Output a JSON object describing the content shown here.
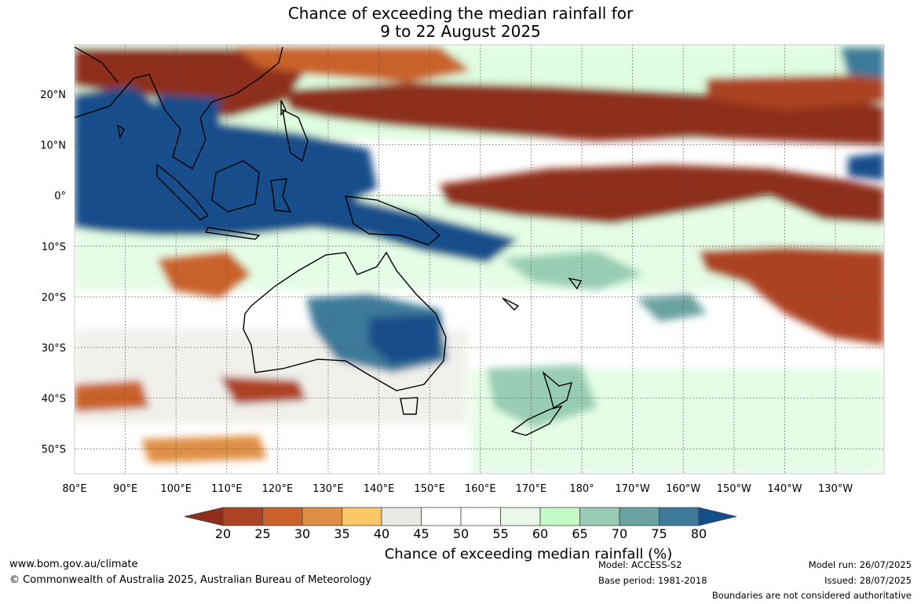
{
  "title_line1": "Chance of exceeding the median rainfall for",
  "title_line2": "9 to 22 August 2025",
  "lat_labels": [
    "20°N",
    "10°N",
    "0°",
    "10°S",
    "20°S",
    "30°S",
    "40°S",
    "50°S"
  ],
  "lon_labels": [
    "80°E",
    "90°E",
    "100°E",
    "110°E",
    "120°E",
    "130°E",
    "140°E",
    "150°E",
    "160°E",
    "170°E",
    "180°",
    "170°W",
    "160°W",
    "150°W",
    "140°W",
    "130°W"
  ],
  "colorbar": {
    "ticks": [
      "20",
      "25",
      "30",
      "35",
      "40",
      "45",
      "50",
      "55",
      "60",
      "65",
      "70",
      "75",
      "80"
    ],
    "colors": [
      "#8e2e1c",
      "#ad4323",
      "#c9622b",
      "#df8f45",
      "#fbc869",
      "#ebe9e4",
      "#ffffff",
      "#ffffff",
      "#e9f8e9",
      "#c5fbc7",
      "#98ccb4",
      "#6aa1a1",
      "#3d7a9a",
      "#154d8a"
    ],
    "title": "Chance of exceeding median rainfall (%)"
  },
  "footer": {
    "url": "www.bom.gov.au/climate",
    "copyright": "© Commonwealth of Australia 2025, Australian Bureau of Meteorology",
    "model": "Model: ACCESS-S2",
    "base_period": "Base period: 1981-2018",
    "model_run": "Model run: 26/07/2025",
    "issued": "Issued: 28/07/2025",
    "disclaimer": "Boundaries are not considered authoritative"
  }
}
